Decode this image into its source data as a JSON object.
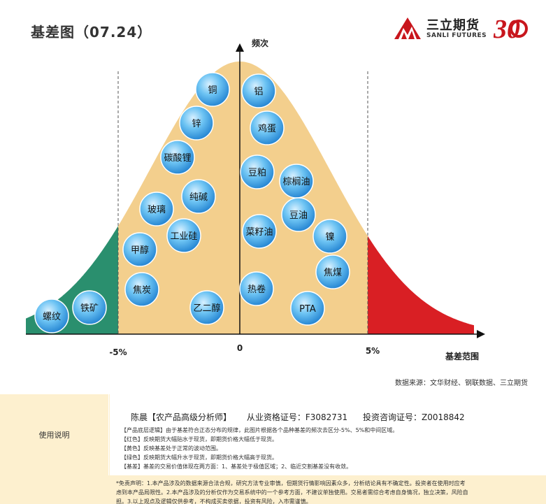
{
  "title": "基差图（07.24）",
  "logo": {
    "cn": "三立期货",
    "en": "SANLI FUTURES",
    "mark": "30"
  },
  "chart_data": {
    "type": "scatter",
    "ylabel": "频次",
    "xlabel": "基差范围",
    "xticks": [
      "-5%",
      "0",
      "5%"
    ],
    "zones": [
      {
        "name": "绿色",
        "color": "#2a8f6e"
      },
      {
        "name": "黄色",
        "color": "#f3cf8d"
      },
      {
        "name": "红色",
        "color": "#d91f24"
      }
    ],
    "points": [
      {
        "label": "铜"
      },
      {
        "label": "铝"
      },
      {
        "label": "锌"
      },
      {
        "label": "鸡蛋"
      },
      {
        "label": "碳酸锂"
      },
      {
        "label": "豆粕"
      },
      {
        "label": "棕榈油"
      },
      {
        "label": "纯碱"
      },
      {
        "label": "玻璃"
      },
      {
        "label": "豆油"
      },
      {
        "label": "工业硅"
      },
      {
        "label": "菜籽油"
      },
      {
        "label": "镍"
      },
      {
        "label": "甲醇"
      },
      {
        "label": "焦煤"
      },
      {
        "label": "焦炭"
      },
      {
        "label": "热卷"
      },
      {
        "label": "铁矿"
      },
      {
        "label": "乙二醇"
      },
      {
        "label": "PTA"
      },
      {
        "label": "螺纹"
      }
    ]
  },
  "source": "数据来源：文华财经、钢联数据、三立期货",
  "usage": {
    "label": "使用说明",
    "analyst_name": "陈晨【农产品高级分析师】",
    "cert": "从业资格证号：F3082731",
    "consult": "投资咨询证号：Z0018842",
    "notes": [
      "【产品底层逻辑】由于基差符合正态分布的规律，此图片根据各个品种基差的频次去区分-5%、5%和中间区域。",
      "【红色】反映期货大幅贴水于现货，即期货价格大幅低于现货。",
      "【黄色】反映基差处于正常的波动范围。",
      "【绿色】反映期货大幅升水于现货，即期货价格大幅高于现货。",
      "【基差】基差的交易价值体现在两方面：1、基差处于极值区域；2、临近交割基差没有收敛。"
    ]
  },
  "disclaimer": [
    "*免责声明：1.本产品涉及的数据来源合法合规，研究方法专业审慎，但期货行情影响因素众多，分析结论具有不确定性。投资者在使用时应考",
    "虑到本产品局限性。2.本产品涉及的分析仅作为交易系统中的一个参考方面，不建议单独使用。交易者需综合考虑自身情况，独立决策，风险自",
    "担。3.以上观点及逻辑仅供参考，不构成买卖依据，投资有风险，入市需谨慎。"
  ]
}
